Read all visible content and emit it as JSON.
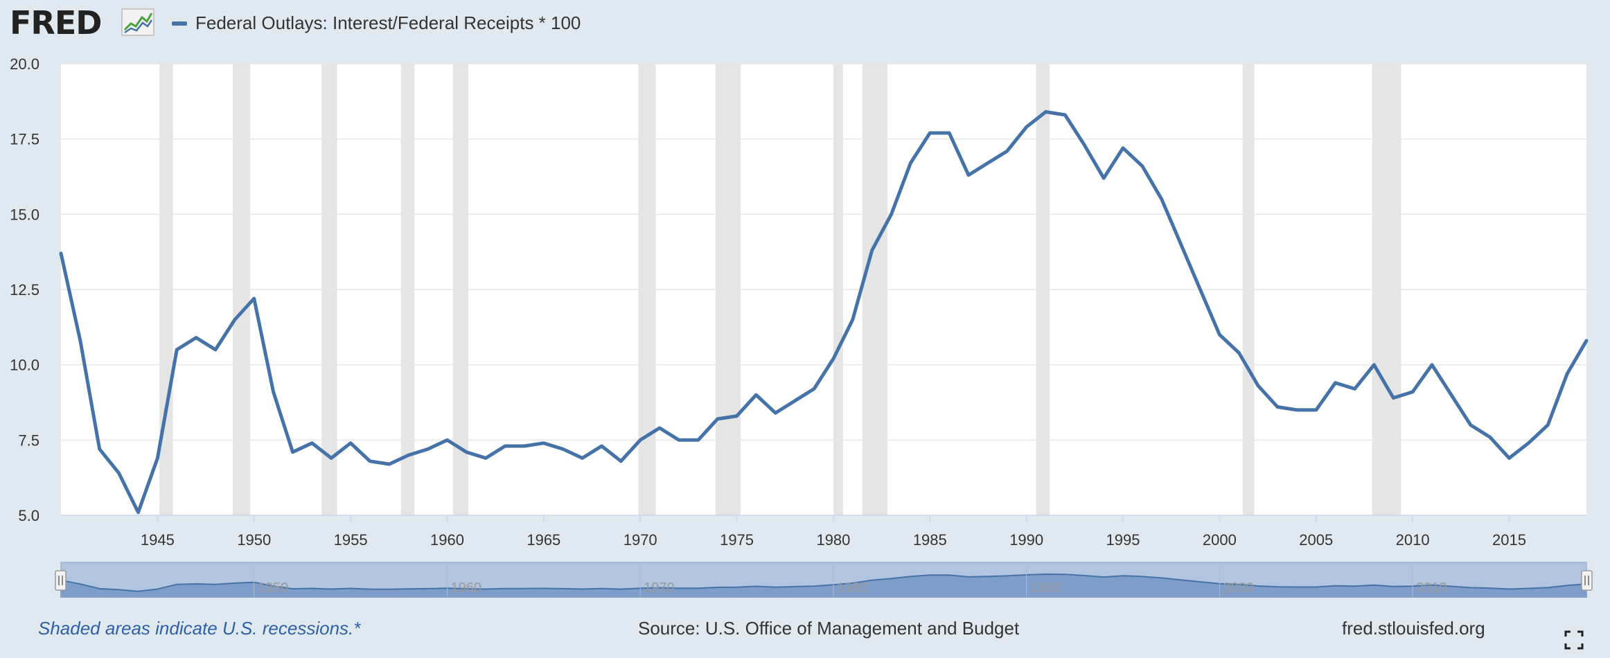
{
  "header": {
    "logo_text": "FRED",
    "logo_icon": "line-chart-icon",
    "legend_label": "Federal Outlays: Interest/Federal Receipts * 100",
    "legend_color": "#4572a7"
  },
  "footer": {
    "recession_note": "Shaded areas indicate U.S. recessions.*",
    "source": "Source: U.S. Office of Management and Budget",
    "site": "fred.stlouisfed.org",
    "fullscreen_icon": "fullscreen-icon"
  },
  "colors": {
    "background": "#e1e9f0",
    "plot_background": "#ffffff",
    "series": "#4572a7",
    "recession_band": "#e5e5e5",
    "navigator_fill": "#7f9dcb",
    "navigator_background": "#b2c5e0"
  },
  "chart_data": {
    "type": "line",
    "title": "",
    "xlabel": "",
    "ylabel": "",
    "ylim": [
      5.0,
      20.0
    ],
    "xlim": [
      1940,
      2019
    ],
    "grid": true,
    "legend_position": "top-left",
    "yticks": [
      "5.0",
      "7.5",
      "10.0",
      "12.5",
      "15.0",
      "17.5",
      "20.0"
    ],
    "xticks": [
      "1945",
      "1950",
      "1955",
      "1960",
      "1965",
      "1970",
      "1975",
      "1980",
      "1985",
      "1990",
      "1995",
      "2000",
      "2005",
      "2010",
      "2015"
    ],
    "navigator_labels": [
      "1950",
      "1960",
      "1970",
      "1980",
      "1990",
      "2000",
      "2010"
    ],
    "recessions": [
      [
        1945.1,
        1945.8
      ],
      [
        1948.9,
        1949.8
      ],
      [
        1953.5,
        1954.3
      ],
      [
        1957.6,
        1958.3
      ],
      [
        1960.3,
        1961.1
      ],
      [
        1969.9,
        1970.8
      ],
      [
        1973.9,
        1975.2
      ],
      [
        1980.0,
        1980.5
      ],
      [
        1981.5,
        1982.8
      ],
      [
        1990.5,
        1991.2
      ],
      [
        2001.2,
        2001.8
      ],
      [
        2007.9,
        2009.4
      ]
    ],
    "series": [
      {
        "x": [
          1940,
          1941,
          1942,
          1943,
          1944,
          1945,
          1946,
          1947,
          1948,
          1949,
          1950,
          1951,
          1952,
          1953,
          1954,
          1955,
          1956,
          1957,
          1958,
          1959,
          1960,
          1961,
          1962,
          1963,
          1964,
          1965,
          1966,
          1967,
          1968,
          1969,
          1970,
          1971,
          1972,
          1973,
          1974,
          1975,
          1976,
          1977,
          1978,
          1979,
          1980,
          1981,
          1982,
          1983,
          1984,
          1985,
          1986,
          1987,
          1988,
          1989,
          1990,
          1991,
          1992,
          1993,
          1994,
          1995,
          1996,
          1997,
          1998,
          1999,
          2000,
          2001,
          2002,
          2003,
          2004,
          2005,
          2006,
          2007,
          2008,
          2009,
          2010,
          2011,
          2012,
          2013,
          2014,
          2015,
          2016,
          2017,
          2018,
          2019
        ],
        "values": [
          13.7,
          10.8,
          7.2,
          6.4,
          5.1,
          6.9,
          10.5,
          10.9,
          10.5,
          11.5,
          12.2,
          9.1,
          7.1,
          7.4,
          6.9,
          7.4,
          6.8,
          6.7,
          7.0,
          7.2,
          7.5,
          7.1,
          6.9,
          7.3,
          7.3,
          7.4,
          7.2,
          6.9,
          7.3,
          6.8,
          7.5,
          7.9,
          7.5,
          7.5,
          8.2,
          8.3,
          9.0,
          8.4,
          8.8,
          9.2,
          10.2,
          11.5,
          13.8,
          15.0,
          16.7,
          17.7,
          17.7,
          16.3,
          16.7,
          17.1,
          17.9,
          18.4,
          18.3,
          17.3,
          16.2,
          17.2,
          16.6,
          15.5,
          14.0,
          12.5,
          11.0,
          10.4,
          9.3,
          8.6,
          8.5,
          8.5,
          9.4,
          9.2,
          10.0,
          8.9,
          9.1,
          10.0,
          9.0,
          8.0,
          7.6,
          6.9,
          7.4,
          8.0,
          9.7,
          10.8
        ]
      }
    ]
  }
}
